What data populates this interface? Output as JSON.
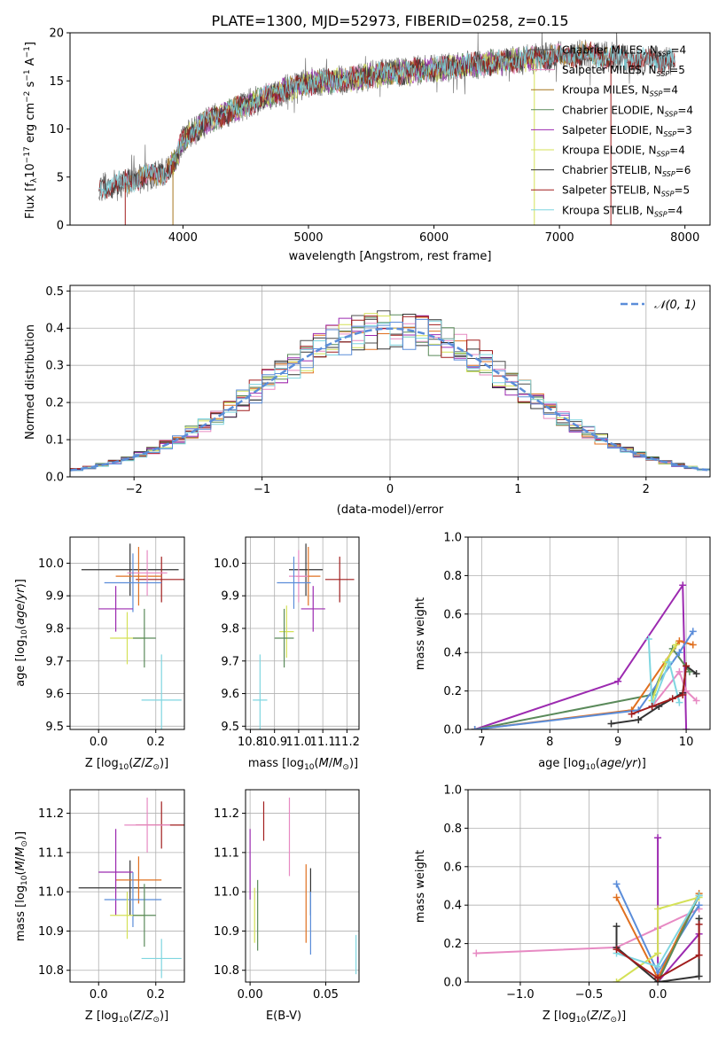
{
  "colors": {
    "chabrier_miles": "#4c4c4c",
    "salpeter_miles": "#e78ac3",
    "kroupa_miles": "#a6761d",
    "chabrier_elodie": "#5a8a5a",
    "salpeter_elodie": "#9c2ab0",
    "kroupa_elodie": "#d4e157",
    "chabrier_stelib": "#333333",
    "salpeter_stelib": "#a11d1d",
    "kroupa_stelib": "#7fd6e0",
    "blue": "#5b8dd9",
    "orange": "#e07020",
    "green": "#7fbf3f"
  },
  "chart_data": [
    {
      "id": "spectrum",
      "type": "line",
      "title": "PLATE=1300, MJD=52973, FIBERID=0258, z=0.15",
      "xlabel": "wavelength [Angstrom, rest frame]",
      "ylabel": "Flux [f_λ10^-17 erg cm^-2 s^-1 A^-1]",
      "xlim": [
        3100,
        8200
      ],
      "ylim": [
        0,
        20
      ],
      "xticks": [
        "4000",
        "5000",
        "6000",
        "7000",
        "8000"
      ],
      "yticks": [
        "0",
        "5",
        "10",
        "15",
        "20"
      ],
      "legend_position": "top-right",
      "legend": [
        "Chabrier MILES, N_SSP=4",
        "Salpeter MILES, N_SSP=5",
        "Kroupa MILES, N_SSP=4",
        "Chabrier ELODIE, N_SSP=4",
        "Salpeter ELODIE, N_SSP=3",
        "Kroupa ELODIE, N_SSP=4",
        "Chabrier STELIB, N_SSP=6",
        "Salpeter STELIB, N_SSP=5",
        "Kroupa STELIB, N_SSP=4"
      ],
      "continuum": {
        "x": [
          3350,
          3500,
          3700,
          3850,
          3950,
          4000,
          4200,
          4400,
          4600,
          4800,
          5000,
          5200,
          5400,
          5600,
          5800,
          6000,
          6200,
          6400,
          6600,
          6800,
          7000,
          7200,
          7400,
          7600,
          7800,
          8000
        ],
        "y": [
          4.0,
          4.3,
          5.0,
          5.5,
          7.0,
          9.0,
          10.8,
          12.0,
          13.0,
          14.0,
          14.8,
          15.0,
          15.3,
          15.8,
          16.0,
          16.2,
          16.5,
          16.8,
          17.0,
          17.3,
          17.6,
          17.8,
          17.5,
          17.2,
          17.0,
          17.0
        ]
      }
    },
    {
      "id": "residuals",
      "type": "line",
      "xlabel": "(data-model)/error",
      "ylabel": "Normed distribution",
      "xlim": [
        -2.5,
        2.5
      ],
      "ylim": [
        0,
        0.515
      ],
      "xticks": [
        "−2",
        "−1",
        "0",
        "1",
        "2"
      ],
      "yticks": [
        "0.0",
        "0.1",
        "0.2",
        "0.3",
        "0.4",
        "0.5"
      ],
      "legend": [
        "𝒩(0, 1)"
      ],
      "legend_position": "top-right",
      "grid": true
    },
    {
      "id": "age_vs_Z",
      "type": "scatter",
      "xlabel": "Z [log10(Z/Z⊙)]",
      "ylabel": "age [log10(age/yr)]",
      "xlim": [
        -0.1,
        0.3
      ],
      "ylim": [
        9.49,
        10.08
      ],
      "xticks": [
        "0.0",
        "0.2"
      ],
      "yticks": [
        "9.5",
        "9.6",
        "9.7",
        "9.8",
        "9.9",
        "10.0"
      ],
      "grid": true,
      "points": [
        {
          "color": "chabrier_stelib",
          "x": 0.11,
          "y": 9.98,
          "xerr": 0.17,
          "yerr": 0.08
        },
        {
          "color": "salpeter_stelib",
          "x": 0.22,
          "y": 9.95,
          "xerr": 0.09,
          "yerr": 0.07
        },
        {
          "color": "orange",
          "x": 0.14,
          "y": 9.96,
          "xerr": 0.08,
          "yerr": 0.09
        },
        {
          "color": "salpeter_miles",
          "x": 0.17,
          "y": 9.97,
          "xerr": 0.07,
          "yerr": 0.07
        },
        {
          "color": "blue",
          "x": 0.12,
          "y": 9.94,
          "xerr": 0.1,
          "yerr": 0.09
        },
        {
          "color": "salpeter_elodie",
          "x": 0.06,
          "y": 9.86,
          "xerr": 0.06,
          "yerr": 0.07
        },
        {
          "color": "kroupa_elodie",
          "x": 0.1,
          "y": 9.77,
          "xerr": 0.06,
          "yerr": 0.08
        },
        {
          "color": "chabrier_elodie",
          "x": 0.16,
          "y": 9.77,
          "xerr": 0.04,
          "yerr": 0.09
        },
        {
          "color": "kroupa_stelib",
          "x": 0.22,
          "y": 9.58,
          "xerr": 0.07,
          "yerr": 0.14
        }
      ]
    },
    {
      "id": "age_vs_mass",
      "type": "scatter",
      "xlabel": "mass [log10(M/M⊙)]",
      "ylabel": "",
      "xlim": [
        10.78,
        11.25
      ],
      "ylim": [
        9.49,
        10.08
      ],
      "xticks": [
        "10.8",
        "10.9",
        "11.0",
        "11.1",
        "11.2"
      ],
      "yticks": [
        "9.5",
        "9.6",
        "9.7",
        "9.8",
        "9.9",
        "10.0"
      ],
      "grid": true,
      "points": [
        {
          "color": "chabrier_stelib",
          "x": 11.03,
          "y": 9.98,
          "xerr": 0.07,
          "yerr": 0.08
        },
        {
          "color": "salpeter_stelib",
          "x": 11.17,
          "y": 9.95,
          "xerr": 0.06,
          "yerr": 0.07
        },
        {
          "color": "orange",
          "x": 11.04,
          "y": 9.96,
          "xerr": 0.05,
          "yerr": 0.09
        },
        {
          "color": "salpeter_miles",
          "x": 11.0,
          "y": 9.96,
          "xerr": 0.04,
          "yerr": 0.08
        },
        {
          "color": "blue",
          "x": 10.98,
          "y": 9.94,
          "xerr": 0.07,
          "yerr": 0.08
        },
        {
          "color": "salpeter_elodie",
          "x": 11.06,
          "y": 9.86,
          "xerr": 0.05,
          "yerr": 0.07
        },
        {
          "color": "kroupa_elodie",
          "x": 10.95,
          "y": 9.79,
          "xerr": 0.03,
          "yerr": 0.08
        },
        {
          "color": "chabrier_elodie",
          "x": 10.94,
          "y": 9.77,
          "xerr": 0.04,
          "yerr": 0.09
        },
        {
          "color": "kroupa_stelib",
          "x": 10.84,
          "y": 9.58,
          "xerr": 0.03,
          "yerr": 0.14
        }
      ]
    },
    {
      "id": "weight_vs_age",
      "type": "line",
      "xlabel": "age [log10(age/yr)]",
      "ylabel": "mass weight",
      "xlim": [
        6.8,
        10.35
      ],
      "ylim": [
        0,
        1.0
      ],
      "xticks": [
        "7",
        "8",
        "9",
        "10"
      ],
      "yticks": [
        "0.0",
        "0.2",
        "0.4",
        "0.6",
        "0.8",
        "1.0"
      ],
      "grid": true,
      "series": [
        {
          "color": "salpeter_elodie",
          "x": [
            6.9,
            9.0,
            9.95,
            10.0
          ],
          "y": [
            0.0,
            0.25,
            0.75,
            0.0
          ]
        },
        {
          "color": "chabrier_elodie",
          "x": [
            6.9,
            9.5,
            9.8,
            10.05
          ],
          "y": [
            0.0,
            0.18,
            0.42,
            0.3
          ]
        },
        {
          "color": "orange",
          "x": [
            6.9,
            9.2,
            9.9,
            10.1
          ],
          "y": [
            0.0,
            0.1,
            0.46,
            0.44
          ]
        },
        {
          "color": "blue",
          "x": [
            6.9,
            9.3,
            9.9,
            10.1
          ],
          "y": [
            0.0,
            0.1,
            0.4,
            0.51
          ]
        },
        {
          "color": "salpeter_miles",
          "x": [
            9.5,
            9.9,
            10.0,
            10.15
          ],
          "y": [
            0.12,
            0.3,
            0.2,
            0.15
          ]
        },
        {
          "color": "kroupa_elodie",
          "x": [
            9.5,
            9.7,
            9.85
          ],
          "y": [
            0.15,
            0.35,
            0.44
          ]
        },
        {
          "color": "kroupa_stelib",
          "x": [
            9.45,
            9.5,
            9.75,
            9.9
          ],
          "y": [
            0.47,
            0.12,
            0.35,
            0.14
          ]
        },
        {
          "color": "chabrier_stelib",
          "x": [
            8.9,
            9.3,
            9.6,
            9.95,
            10.0,
            10.15
          ],
          "y": [
            0.03,
            0.05,
            0.12,
            0.19,
            0.33,
            0.29
          ]
        },
        {
          "color": "salpeter_stelib",
          "x": [
            9.2,
            9.5,
            9.8,
            9.95,
            10.0
          ],
          "y": [
            0.08,
            0.12,
            0.16,
            0.18,
            0.33
          ]
        }
      ]
    },
    {
      "id": "mass_vs_Z",
      "type": "scatter",
      "xlabel": "Z [log10(Z/Z⊙)]",
      "ylabel": "mass [log10(M/M⊙)]",
      "xlim": [
        -0.1,
        0.3
      ],
      "ylim": [
        10.77,
        11.26
      ],
      "xticks": [
        "0.0",
        "0.2"
      ],
      "yticks": [
        "10.8",
        "10.9",
        "11.0",
        "11.1",
        "11.2"
      ],
      "grid": true,
      "points": [
        {
          "color": "chabrier_stelib",
          "x": 0.11,
          "y": 11.01,
          "xerr": 0.18,
          "yerr": 0.07
        },
        {
          "color": "salpeter_stelib",
          "x": 0.22,
          "y": 11.17,
          "xerr": 0.09,
          "yerr": 0.06
        },
        {
          "color": "salpeter_miles",
          "x": 0.17,
          "y": 11.17,
          "xerr": 0.08,
          "yerr": 0.07
        },
        {
          "color": "orange",
          "x": 0.14,
          "y": 11.03,
          "xerr": 0.08,
          "yerr": 0.06
        },
        {
          "color": "salpeter_elodie",
          "x": 0.06,
          "y": 11.05,
          "xerr": 0.06,
          "yerr": 0.11
        },
        {
          "color": "blue",
          "x": 0.12,
          "y": 10.98,
          "xerr": 0.1,
          "yerr": 0.07
        },
        {
          "color": "kroupa_elodie",
          "x": 0.1,
          "y": 10.94,
          "xerr": 0.06,
          "yerr": 0.06
        },
        {
          "color": "chabrier_elodie",
          "x": 0.16,
          "y": 10.94,
          "xerr": 0.04,
          "yerr": 0.08
        },
        {
          "color": "kroupa_stelib",
          "x": 0.22,
          "y": 10.83,
          "xerr": 0.07,
          "yerr": 0.05
        }
      ]
    },
    {
      "id": "mass_vs_EBV",
      "type": "scatter",
      "xlabel": "E(B-V)",
      "ylabel": "",
      "xlim": [
        -0.003,
        0.072
      ],
      "ylim": [
        10.77,
        11.26
      ],
      "xticks": [
        "0.00",
        "0.05"
      ],
      "yticks": [
        "10.8",
        "10.9",
        "11.0",
        "11.1",
        "11.2"
      ],
      "grid": true,
      "points": [
        {
          "color": "salpeter_elodie",
          "x": 0.0,
          "y": 11.07,
          "xerr": 0,
          "yerr": 0.09
        },
        {
          "color": "kroupa_elodie",
          "x": 0.003,
          "y": 10.94,
          "xerr": 0,
          "yerr": 0.07
        },
        {
          "color": "chabrier_elodie",
          "x": 0.005,
          "y": 10.94,
          "xerr": 0,
          "yerr": 0.09
        },
        {
          "color": "salpeter_stelib",
          "x": 0.009,
          "y": 11.18,
          "xerr": 0,
          "yerr": 0.05
        },
        {
          "color": "salpeter_miles",
          "x": 0.026,
          "y": 11.14,
          "xerr": 0,
          "yerr": 0.1
        },
        {
          "color": "orange",
          "x": 0.037,
          "y": 10.97,
          "xerr": 0,
          "yerr": 0.1
        },
        {
          "color": "chabrier_stelib",
          "x": 0.04,
          "y": 11.0,
          "xerr": 0,
          "yerr": 0.06
        },
        {
          "color": "blue",
          "x": 0.04,
          "y": 10.92,
          "xerr": 0,
          "yerr": 0.08
        },
        {
          "color": "kroupa_stelib",
          "x": 0.07,
          "y": 10.84,
          "xerr": 0,
          "yerr": 0.05
        }
      ]
    },
    {
      "id": "weight_vs_Z",
      "type": "line",
      "xlabel": "Z [log10(Z/Z⊙)]",
      "ylabel": "mass weight",
      "xlim": [
        -1.38,
        0.38
      ],
      "ylim": [
        0,
        1.0
      ],
      "xticks": [
        "−1.0",
        "−0.5",
        "0.0"
      ],
      "yticks": [
        "0.0",
        "0.2",
        "0.4",
        "0.6",
        "0.8",
        "1.0"
      ],
      "grid": true,
      "series": [
        {
          "color": "salpeter_miles",
          "x": [
            -1.32,
            -0.3,
            0.0,
            0.3
          ],
          "y": [
            0.15,
            0.18,
            0.28,
            0.38
          ]
        },
        {
          "color": "salpeter_elodie",
          "x": [
            0.0,
            0.0,
            0.3
          ],
          "y": [
            0.75,
            0.0,
            0.25
          ]
        },
        {
          "color": "blue",
          "x": [
            -0.3,
            0.0,
            0.3
          ],
          "y": [
            0.51,
            0.05,
            0.4
          ]
        },
        {
          "color": "orange",
          "x": [
            -0.3,
            0.0,
            0.3
          ],
          "y": [
            0.44,
            0.02,
            0.46
          ]
        },
        {
          "color": "kroupa_elodie",
          "x": [
            -0.3,
            0.0,
            0.0,
            0.3
          ],
          "y": [
            0.0,
            0.15,
            0.38,
            0.44
          ]
        },
        {
          "color": "chabrier_elodie",
          "x": [
            0.0,
            0.3
          ],
          "y": [
            0.0,
            0.45
          ]
        },
        {
          "color": "kroupa_stelib",
          "x": [
            -0.3,
            0.0,
            0.3
          ],
          "y": [
            0.15,
            0.08,
            0.45
          ]
        },
        {
          "color": "chabrier_stelib",
          "x": [
            -0.3,
            -0.3,
            0.0,
            0.3,
            0.3
          ],
          "y": [
            0.29,
            0.18,
            0.0,
            0.03,
            0.33
          ]
        },
        {
          "color": "salpeter_stelib",
          "x": [
            -0.3,
            0.0,
            0.3,
            0.3
          ],
          "y": [
            0.17,
            0.02,
            0.14,
            0.3
          ]
        }
      ]
    }
  ]
}
